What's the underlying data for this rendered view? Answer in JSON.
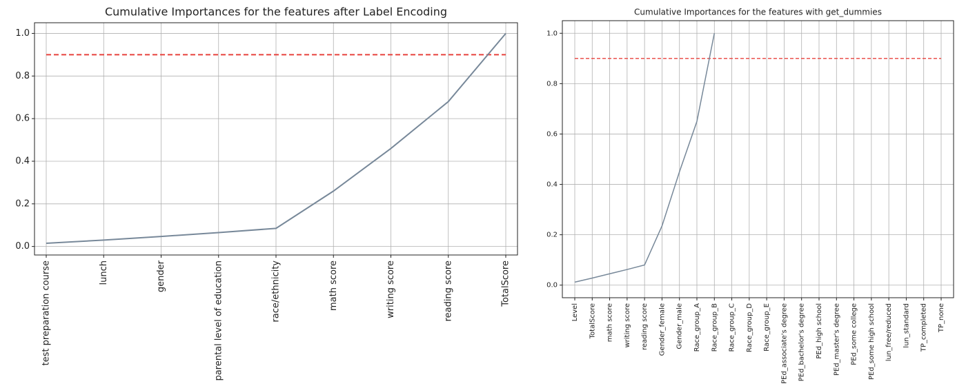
{
  "chart_data": [
    {
      "type": "line",
      "title": "Cumulative Importances for the features after Label Encoding",
      "categories": [
        "test preparation course",
        "lunch",
        "gender",
        "parental level of education",
        "race/ethnicity",
        "math score",
        "writing score",
        "reading score",
        "TotalScore"
      ],
      "values": [
        0.015,
        0.03,
        0.047,
        0.065,
        0.085,
        0.26,
        0.46,
        0.68,
        1.0
      ],
      "color": "#778899",
      "threshold": 0.9,
      "threshold_color": "#e8413c",
      "ylim": [
        -0.04,
        1.05
      ],
      "yticks": [
        {
          "value": 0,
          "label": "0.0"
        },
        0.2,
        0.4,
        0.6,
        0.8,
        {
          "value": 1,
          "label": "1.0"
        }
      ],
      "grid": true
    },
    {
      "type": "line",
      "title": "Cumulative Importances for the features with get_dummies",
      "categories": [
        "Level",
        "TotalScore",
        "math score",
        "writing score",
        "reading score",
        "Gender_female",
        "Gender_male",
        "Race_group_A",
        "Race_group_B",
        "Race_group_C",
        "Race_group_D",
        "Race_group_E",
        "PEd_associate's degree",
        "PEd_bachelor's degree",
        "PEd_high school",
        "PEd_master's degree",
        "PEd_some college",
        "PEd_some high school",
        "lun_free/reduced",
        "lun_standard",
        "TP_completed",
        "TP_none"
      ],
      "values": [
        0.012,
        0.028,
        0.045,
        0.062,
        0.08,
        0.235,
        0.45,
        0.65,
        1.0,
        null,
        null,
        null,
        null,
        null,
        null,
        null,
        null,
        null,
        null,
        null,
        null,
        null
      ],
      "color": "#778899",
      "threshold": 0.9,
      "threshold_color": "#e8413c",
      "ylim": [
        -0.05,
        1.05
      ],
      "yticks": [
        {
          "value": 0,
          "label": "0.0"
        },
        0.2,
        0.4,
        0.6,
        0.8,
        {
          "value": 1,
          "label": "1.0"
        }
      ],
      "grid": true
    }
  ]
}
